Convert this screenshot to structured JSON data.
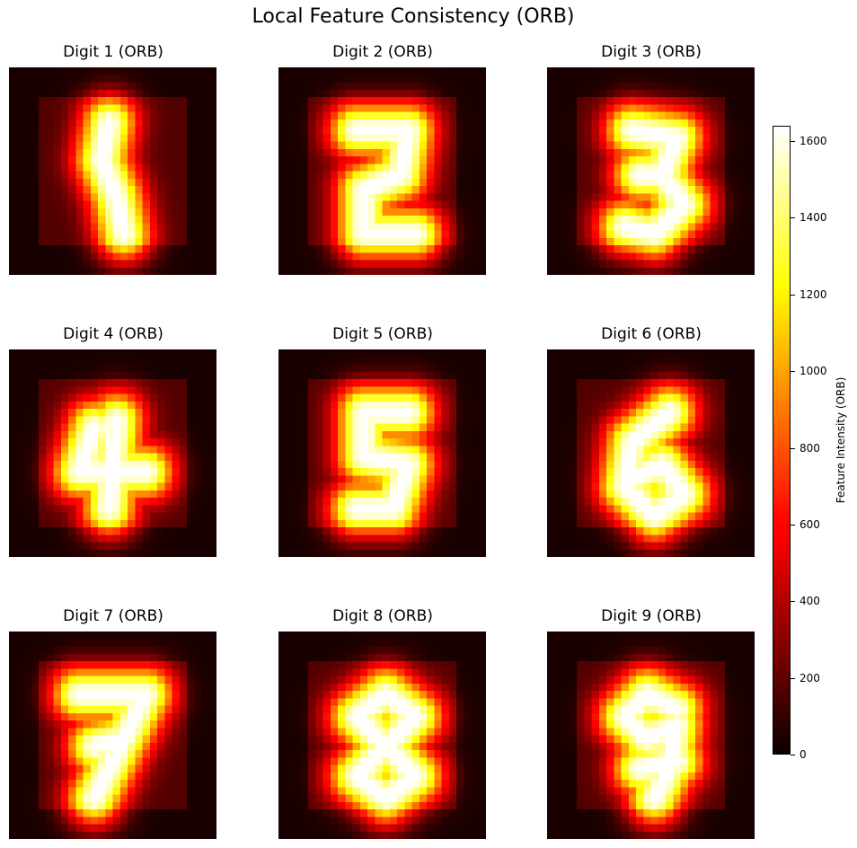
{
  "title": "Local Feature Consistency (ORB)",
  "chart_data": {
    "type": "heatmap",
    "colormap": "hot",
    "grid": false,
    "axes_visible": false,
    "panels": [
      {
        "title": "Digit 1 (ORB)",
        "digit": 1
      },
      {
        "title": "Digit 2 (ORB)",
        "digit": 2
      },
      {
        "title": "Digit 3 (ORB)",
        "digit": 3
      },
      {
        "title": "Digit 4 (ORB)",
        "digit": 4
      },
      {
        "title": "Digit 5 (ORB)",
        "digit": 5
      },
      {
        "title": "Digit 6 (ORB)",
        "digit": 6
      },
      {
        "title": "Digit 7 (ORB)",
        "digit": 7
      },
      {
        "title": "Digit 8 (ORB)",
        "digit": 8
      },
      {
        "title": "Digit 9 (ORB)",
        "digit": 9
      }
    ],
    "colorbar": {
      "label": "Feature Intensity (ORB)",
      "range": [
        0,
        1640
      ],
      "ticks": [
        0,
        200,
        400,
        600,
        800,
        1000,
        1200,
        1400,
        1600
      ]
    }
  }
}
